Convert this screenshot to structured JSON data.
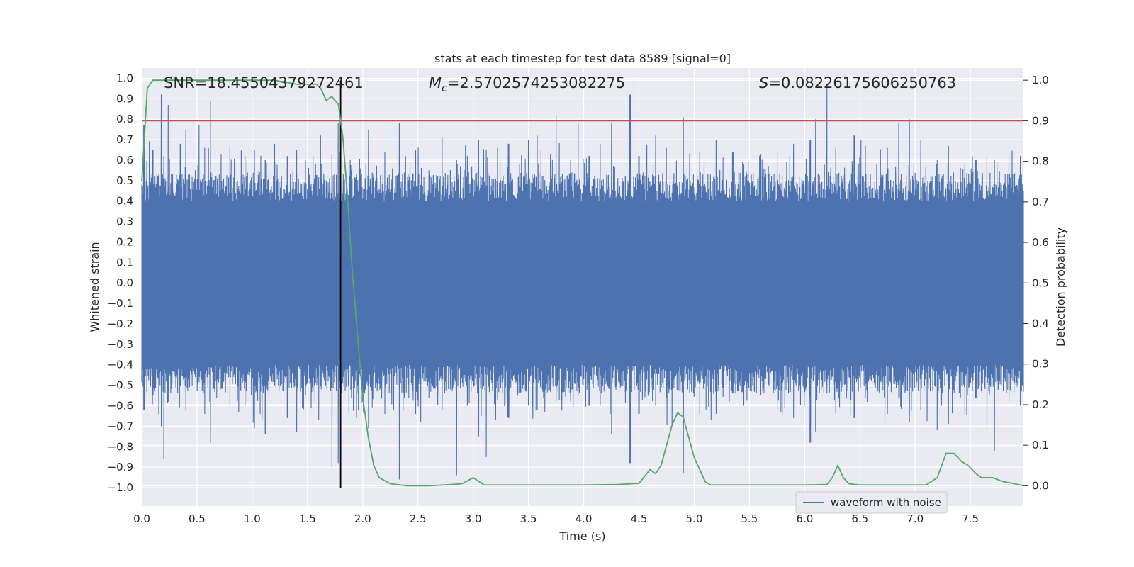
{
  "chart_data": {
    "type": "line",
    "title": "stats at each timestep for test data 8589 [signal=0]",
    "xlabel": "Time (s)",
    "ylabel_left": "Whitened strain",
    "ylabel_right": "Detection probability",
    "xlim": [
      0.0,
      7.98
    ],
    "ylim_left": [
      -1.09,
      1.05
    ],
    "ylim_right": [
      -0.05,
      1.03
    ],
    "x_ticks": [
      "0.0",
      "0.5",
      "1.0",
      "1.5",
      "2.0",
      "2.5",
      "3.0",
      "3.5",
      "4.0",
      "4.5",
      "5.0",
      "5.5",
      "6.0",
      "6.5",
      "7.0",
      "7.5"
    ],
    "y_left_ticks": [
      "1.0",
      "0.9",
      "0.8",
      "0.7",
      "0.6",
      "0.5",
      "0.4",
      "0.3",
      "0.2",
      "0.1",
      "0.0",
      "−0.1",
      "−0.2",
      "−0.3",
      "−0.4",
      "−0.5",
      "−0.6",
      "−0.7",
      "−0.8",
      "−0.9",
      "−1.0"
    ],
    "y_right_ticks": [
      "1.0",
      "0.9",
      "0.8",
      "0.7",
      "0.6",
      "0.5",
      "0.4",
      "0.3",
      "0.2",
      "0.1",
      "0.0"
    ],
    "grid": true,
    "legend": {
      "position": "lower right",
      "entries": [
        {
          "label": "waveform with noise",
          "color": "#4c72b0"
        }
      ]
    },
    "annotations": {
      "snr": "SNR=18.45504379272461",
      "mc_symbol": "M",
      "mc_sub": "c",
      "mc_value": "=2.5702574253082275",
      "s_symbol": "S",
      "s_value": "=0.08226175606250763"
    },
    "threshold_line": {
      "value_right_axis": 0.9,
      "color": "#c44e52"
    },
    "event_marker": {
      "x": 1.8,
      "color": "#000000"
    },
    "strain_series": {
      "name": "waveform with noise",
      "color": "#4c72b0",
      "band_abs_typical": 0.38,
      "peaks": [
        [
          0.02,
          0.77,
          -0.62
        ],
        [
          0.1,
          0.65,
          -0.55
        ],
        [
          0.18,
          0.92,
          -0.7
        ],
        [
          0.2,
          0.62,
          -0.86
        ],
        [
          0.24,
          0.87,
          -0.58
        ],
        [
          0.35,
          0.68,
          -0.5
        ],
        [
          0.4,
          0.75,
          -0.62
        ],
        [
          0.52,
          0.77,
          -0.48
        ],
        [
          0.57,
          0.66,
          -0.64
        ],
        [
          0.62,
          0.89,
          -0.78
        ],
        [
          0.72,
          0.63,
          -0.52
        ],
        [
          0.8,
          0.67,
          -0.6
        ],
        [
          0.95,
          0.6,
          -0.58
        ],
        [
          1.02,
          0.65,
          -0.71
        ],
        [
          1.12,
          0.6,
          -0.74
        ],
        [
          1.2,
          0.68,
          -0.5
        ],
        [
          1.32,
          0.62,
          -0.66
        ],
        [
          1.4,
          0.65,
          -0.73
        ],
        [
          1.48,
          0.6,
          -0.55
        ],
        [
          1.55,
          0.62,
          -0.53
        ],
        [
          1.62,
          0.72,
          -0.5
        ],
        [
          1.72,
          0.63,
          -0.9
        ],
        [
          1.78,
          0.78,
          -0.88
        ],
        [
          1.9,
          0.55,
          -0.56
        ],
        [
          2.05,
          0.75,
          -0.71
        ],
        [
          2.2,
          0.64,
          -0.64
        ],
        [
          2.33,
          0.78,
          -0.96
        ],
        [
          2.48,
          0.65,
          -0.64
        ],
        [
          2.6,
          0.55,
          -0.56
        ],
        [
          2.72,
          0.71,
          -0.62
        ],
        [
          2.85,
          0.6,
          -0.94
        ],
        [
          2.95,
          0.62,
          -0.6
        ],
        [
          3.05,
          0.7,
          -0.75
        ],
        [
          3.12,
          0.65,
          -0.85
        ],
        [
          3.22,
          0.66,
          -0.57
        ],
        [
          3.32,
          0.68,
          -0.66
        ],
        [
          3.5,
          0.7,
          -0.6
        ],
        [
          3.58,
          0.72,
          -0.62
        ],
        [
          3.75,
          0.82,
          -0.58
        ],
        [
          3.88,
          0.6,
          -0.58
        ],
        [
          3.95,
          0.78,
          -0.55
        ],
        [
          4.05,
          0.62,
          -0.6
        ],
        [
          4.15,
          0.68,
          -0.6
        ],
        [
          4.25,
          0.78,
          -0.74
        ],
        [
          4.42,
          0.92,
          -0.88
        ],
        [
          4.5,
          0.62,
          -0.64
        ],
        [
          4.65,
          0.72,
          -0.6
        ],
        [
          4.75,
          0.66,
          -0.56
        ],
        [
          4.9,
          0.81,
          -0.93
        ],
        [
          5.05,
          0.64,
          -0.64
        ],
        [
          5.2,
          0.7,
          -0.64
        ],
        [
          5.35,
          0.64,
          -0.54
        ],
        [
          5.45,
          0.58,
          -0.6
        ],
        [
          5.6,
          0.63,
          -0.55
        ],
        [
          5.75,
          0.64,
          -0.62
        ],
        [
          5.9,
          0.68,
          -0.66
        ],
        [
          6.05,
          0.7,
          -0.78
        ],
        [
          6.1,
          0.8,
          -0.73
        ],
        [
          6.2,
          0.97,
          -0.54
        ],
        [
          6.28,
          0.66,
          -0.64
        ],
        [
          6.45,
          0.72,
          -0.66
        ],
        [
          6.55,
          0.67,
          -0.56
        ],
        [
          6.75,
          0.66,
          -0.64
        ],
        [
          6.85,
          0.78,
          -0.56
        ],
        [
          6.95,
          0.8,
          -0.68
        ],
        [
          7.05,
          0.7,
          -0.62
        ],
        [
          7.2,
          0.6,
          -0.72
        ],
        [
          7.3,
          0.67,
          -0.58
        ],
        [
          7.45,
          0.58,
          -0.64
        ],
        [
          7.55,
          0.6,
          -0.56
        ],
        [
          7.65,
          0.62,
          -0.72
        ],
        [
          7.72,
          0.6,
          -0.82
        ],
        [
          7.85,
          0.63,
          -0.58
        ],
        [
          7.95,
          0.62,
          -0.6
        ]
      ]
    },
    "probability_series": {
      "color": "#55a868",
      "x": [
        0.0,
        0.05,
        0.1,
        0.2,
        0.4,
        0.8,
        1.2,
        1.4,
        1.5,
        1.58,
        1.62,
        1.67,
        1.72,
        1.78,
        1.82,
        1.86,
        1.9,
        1.95,
        2.0,
        2.05,
        2.1,
        2.15,
        2.25,
        2.4,
        2.6,
        2.8,
        2.9,
        3.0,
        3.1,
        3.2,
        3.4,
        3.6,
        4.0,
        4.3,
        4.5,
        4.6,
        4.65,
        4.7,
        4.75,
        4.8,
        4.85,
        4.9,
        4.95,
        5.0,
        5.05,
        5.1,
        5.15,
        5.2,
        5.4,
        6.0,
        6.2,
        6.25,
        6.3,
        6.35,
        6.4,
        6.5,
        6.6,
        7.0,
        7.1,
        7.2,
        7.28,
        7.35,
        7.42,
        7.48,
        7.55,
        7.6,
        7.7,
        7.8,
        7.9,
        7.98
      ],
      "y": [
        0.75,
        0.98,
        1.0,
        1.0,
        1.0,
        1.0,
        1.0,
        0.99,
        0.99,
        0.99,
        0.98,
        0.95,
        0.96,
        0.94,
        0.86,
        0.72,
        0.55,
        0.38,
        0.22,
        0.12,
        0.05,
        0.02,
        0.005,
        0.0,
        0.0,
        0.003,
        0.005,
        0.02,
        0.002,
        0.002,
        0.002,
        0.002,
        0.002,
        0.003,
        0.006,
        0.04,
        0.03,
        0.05,
        0.1,
        0.15,
        0.18,
        0.17,
        0.12,
        0.07,
        0.04,
        0.01,
        0.002,
        0.002,
        0.002,
        0.002,
        0.003,
        0.02,
        0.05,
        0.02,
        0.005,
        0.002,
        0.002,
        0.002,
        0.002,
        0.02,
        0.08,
        0.08,
        0.06,
        0.05,
        0.03,
        0.02,
        0.02,
        0.01,
        0.005,
        0.0
      ]
    }
  }
}
